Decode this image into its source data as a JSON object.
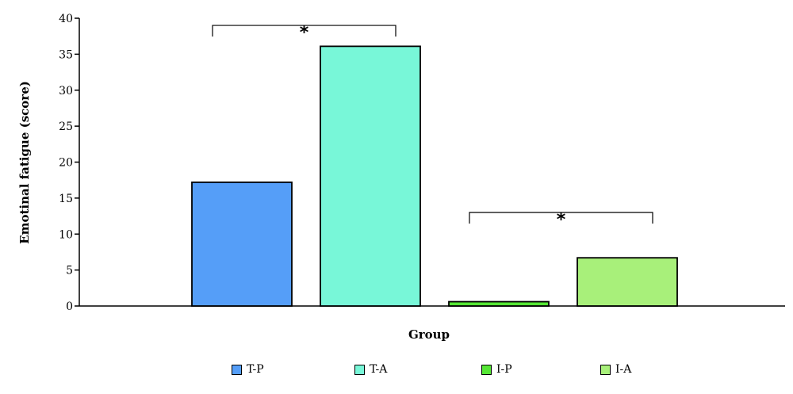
{
  "chart_data": {
    "type": "bar",
    "categories": [
      "T-P",
      "T-A",
      "I-P",
      "I-A"
    ],
    "values": [
      17.2,
      36.1,
      0.6,
      6.7
    ],
    "colors": [
      "#559ef8",
      "#78f7d8",
      "#55e635",
      "#a8f07a"
    ],
    "title": "",
    "xlabel": "Group",
    "ylabel": "Emotinal fatigue (score)",
    "ylim": [
      0,
      40
    ],
    "yticks": [
      0,
      5,
      10,
      15,
      20,
      25,
      30,
      35,
      40
    ],
    "grid": false,
    "legend_position": "bottom",
    "annotations": [
      {
        "label": "*",
        "from": "T-P",
        "to": "T-A",
        "y": 39
      },
      {
        "label": "*",
        "from": "I-P",
        "to": "I-A",
        "y": 13
      }
    ]
  }
}
